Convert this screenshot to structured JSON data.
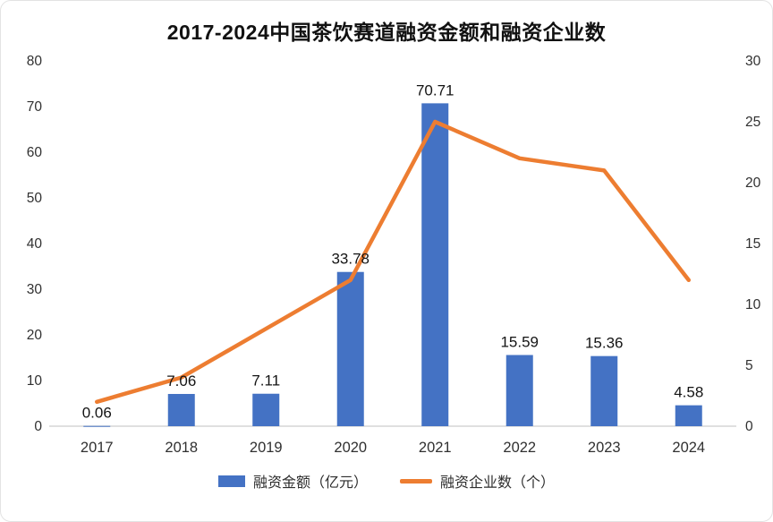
{
  "title": "2017-2024中国茶饮赛道融资金额和融资企业数",
  "colors": {
    "bar": "#4472C4",
    "line": "#ED7D31",
    "axis_text": "#303030",
    "baseline": "#d6d6d6"
  },
  "legend": {
    "bar_label": "融资金额（亿元）",
    "line_label": "融资企业数（个）"
  },
  "chart_data": {
    "type": "bar+line combo",
    "title": "2017-2024中国茶饮赛道融资金额和融资企业数",
    "categories": [
      "2017",
      "2018",
      "2019",
      "2020",
      "2021",
      "2022",
      "2023",
      "2024"
    ],
    "series": [
      {
        "name": "融资金额（亿元）",
        "type": "bar",
        "axis": "left",
        "values": [
          0.06,
          7.06,
          7.11,
          33.78,
          70.71,
          15.59,
          15.36,
          4.58
        ],
        "labels": [
          "0.06",
          "7.06",
          "7.11",
          "33.78",
          "70.71",
          "15.59",
          "15.36",
          "4.58"
        ]
      },
      {
        "name": "融资企业数（个）",
        "type": "line",
        "axis": "right",
        "values": [
          2,
          4,
          8,
          12,
          25,
          22,
          21,
          12
        ]
      }
    ],
    "left_axis": {
      "min": 0,
      "max": 80,
      "step": 10
    },
    "right_axis": {
      "min": 0,
      "max": 30,
      "step": 5
    },
    "grid": false,
    "legend_position": "bottom"
  }
}
